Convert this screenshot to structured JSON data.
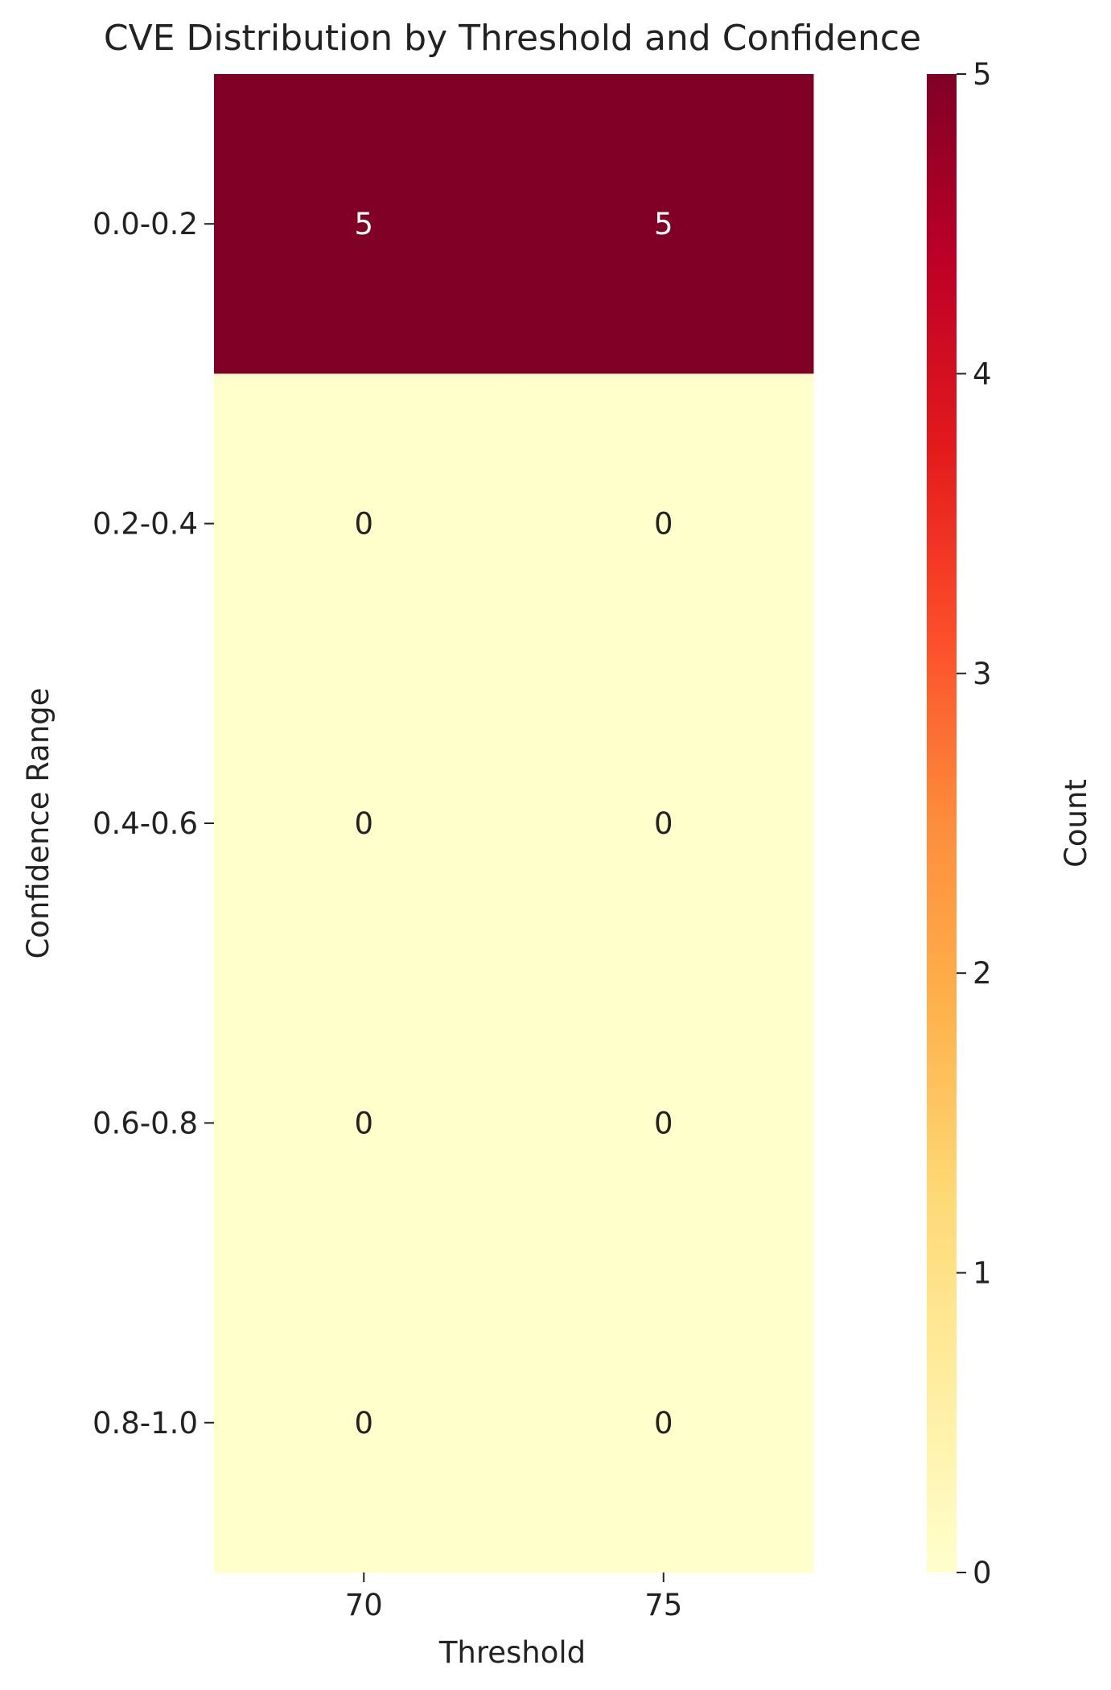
{
  "chart_data": {
    "type": "heatmap",
    "title": "CVE Distribution by Threshold and Confidence",
    "xlabel": "Threshold",
    "ylabel": "Confidence Range",
    "x_categories": [
      "70",
      "75"
    ],
    "y_categories": [
      "0.0-0.2",
      "0.2-0.4",
      "0.4-0.6",
      "0.6-0.8",
      "0.8-1.0"
    ],
    "values": [
      [
        5,
        5
      ],
      [
        0,
        0
      ],
      [
        0,
        0
      ],
      [
        0,
        0
      ],
      [
        0,
        0
      ]
    ],
    "colorbar": {
      "label": "Count",
      "min": 0,
      "max": 5,
      "ticks": [
        0,
        1,
        2,
        3,
        4,
        5
      ],
      "colormap": "YlOrRd",
      "stops": [
        "#ffffcc",
        "#ffeda0",
        "#fed976",
        "#feb24c",
        "#fd8d3c",
        "#fc4e2a",
        "#e31a1c",
        "#bd0026",
        "#800026"
      ]
    },
    "annotation_colors": {
      "dark_cell": "#ffffff",
      "light_cell": "#222222"
    }
  }
}
